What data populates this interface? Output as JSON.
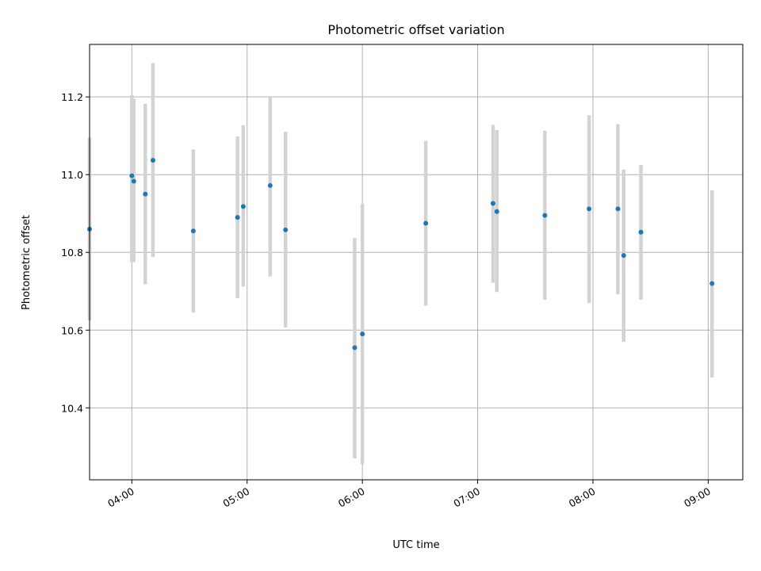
{
  "chart_data": {
    "type": "scatter",
    "title": "Photometric offset variation",
    "xlabel": "UTC time",
    "ylabel": "Photometric offset",
    "x_tick_labels": [
      "04:00",
      "05:00",
      "06:00",
      "07:00",
      "08:00",
      "09:00"
    ],
    "y_tick_labels": [
      "10.4",
      "10.6",
      "10.8",
      "11.0",
      "11.2"
    ],
    "y_ticks": [
      10.4,
      10.6,
      10.8,
      11.0,
      11.2
    ],
    "x_range": [
      "03:38",
      "09:18"
    ],
    "ylim": [
      10.215,
      11.335
    ],
    "grid": true,
    "x_tick_labels_rotated": true,
    "colors": {
      "marker": "#1f77b4",
      "errorbar": "#d3d3d3",
      "grid": "#b0b0b0",
      "axes": "#000000"
    },
    "points": [
      {
        "x": "03:38",
        "y": 10.86,
        "ylow": 10.625,
        "yhigh": 11.095
      },
      {
        "x": "04:00",
        "y": 10.997,
        "ylow": 10.775,
        "yhigh": 11.205
      },
      {
        "x": "04:01",
        "y": 10.983,
        "ylow": 10.775,
        "yhigh": 11.195
      },
      {
        "x": "04:07",
        "y": 10.95,
        "ylow": 10.718,
        "yhigh": 11.182
      },
      {
        "x": "04:11",
        "y": 11.037,
        "ylow": 10.788,
        "yhigh": 11.287
      },
      {
        "x": "04:32",
        "y": 10.855,
        "ylow": 10.645,
        "yhigh": 11.065
      },
      {
        "x": "04:55",
        "y": 10.89,
        "ylow": 10.682,
        "yhigh": 11.098
      },
      {
        "x": "04:58",
        "y": 10.918,
        "ylow": 10.712,
        "yhigh": 11.127
      },
      {
        "x": "05:12",
        "y": 10.972,
        "ylow": 10.738,
        "yhigh": 11.2
      },
      {
        "x": "05:20",
        "y": 10.858,
        "ylow": 10.607,
        "yhigh": 11.11
      },
      {
        "x": "05:56",
        "y": 10.555,
        "ylow": 10.27,
        "yhigh": 10.837
      },
      {
        "x": "06:00",
        "y": 10.59,
        "ylow": 10.255,
        "yhigh": 10.925
      },
      {
        "x": "06:33",
        "y": 10.875,
        "ylow": 10.663,
        "yhigh": 11.087
      },
      {
        "x": "07:08",
        "y": 10.926,
        "ylow": 10.722,
        "yhigh": 11.128
      },
      {
        "x": "07:10",
        "y": 10.905,
        "ylow": 10.698,
        "yhigh": 11.115
      },
      {
        "x": "07:35",
        "y": 10.895,
        "ylow": 10.678,
        "yhigh": 11.113
      },
      {
        "x": "07:58",
        "y": 10.912,
        "ylow": 10.67,
        "yhigh": 11.153
      },
      {
        "x": "08:13",
        "y": 10.912,
        "ylow": 10.692,
        "yhigh": 11.13
      },
      {
        "x": "08:16",
        "y": 10.792,
        "ylow": 10.57,
        "yhigh": 11.013
      },
      {
        "x": "08:25",
        "y": 10.852,
        "ylow": 10.678,
        "yhigh": 11.025
      },
      {
        "x": "09:02",
        "y": 10.72,
        "ylow": 10.478,
        "yhigh": 10.96
      }
    ]
  }
}
